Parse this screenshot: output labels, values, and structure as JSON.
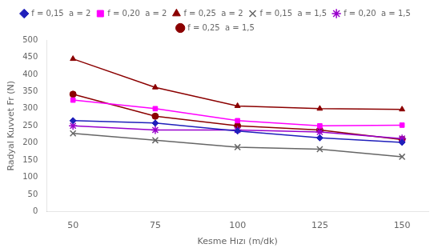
{
  "chart_data": {
    "type": "line",
    "x": [
      50,
      75,
      100,
      125,
      150
    ],
    "series": [
      {
        "name": "f = 0,15  a = 2",
        "color": "#1F1FBB",
        "marker": "diamond",
        "values": [
          265,
          258,
          235,
          215,
          202
        ]
      },
      {
        "name": "f = 0,20  a = 2",
        "color": "#FF00FF",
        "marker": "square",
        "values": [
          325,
          300,
          265,
          250,
          252
        ]
      },
      {
        "name": "f = 0,25  a = 2",
        "color": "#8B0000",
        "marker": "triangle",
        "values": [
          445,
          362,
          308,
          300,
          298
        ]
      },
      {
        "name": "f = 0,15  a = 1,5",
        "color": "#666666",
        "marker": "x",
        "values": [
          228,
          208,
          188,
          182,
          160
        ]
      },
      {
        "name": "f = 0,20  a = 1,5",
        "color": "#9900CC",
        "marker": "star",
        "values": [
          250,
          238,
          238,
          232,
          213
        ]
      },
      {
        "name": "f = 0,25  a = 1,5",
        "color": "#8B0000",
        "marker": "circle",
        "values": [
          342,
          278,
          250,
          238,
          210
        ]
      }
    ],
    "xlabel": "Kesme Hızı (m/dk)",
    "ylabel": "Radyal Kuvvet Fr (N)",
    "xlim": [
      42,
      158
    ],
    "ylim": [
      0,
      500
    ],
    "xticks": [
      50,
      75,
      100,
      125,
      150
    ],
    "yticks": [
      0,
      50,
      100,
      150,
      200,
      250,
      300,
      350,
      400,
      450,
      500
    ],
    "grid": false,
    "legend": "top"
  }
}
